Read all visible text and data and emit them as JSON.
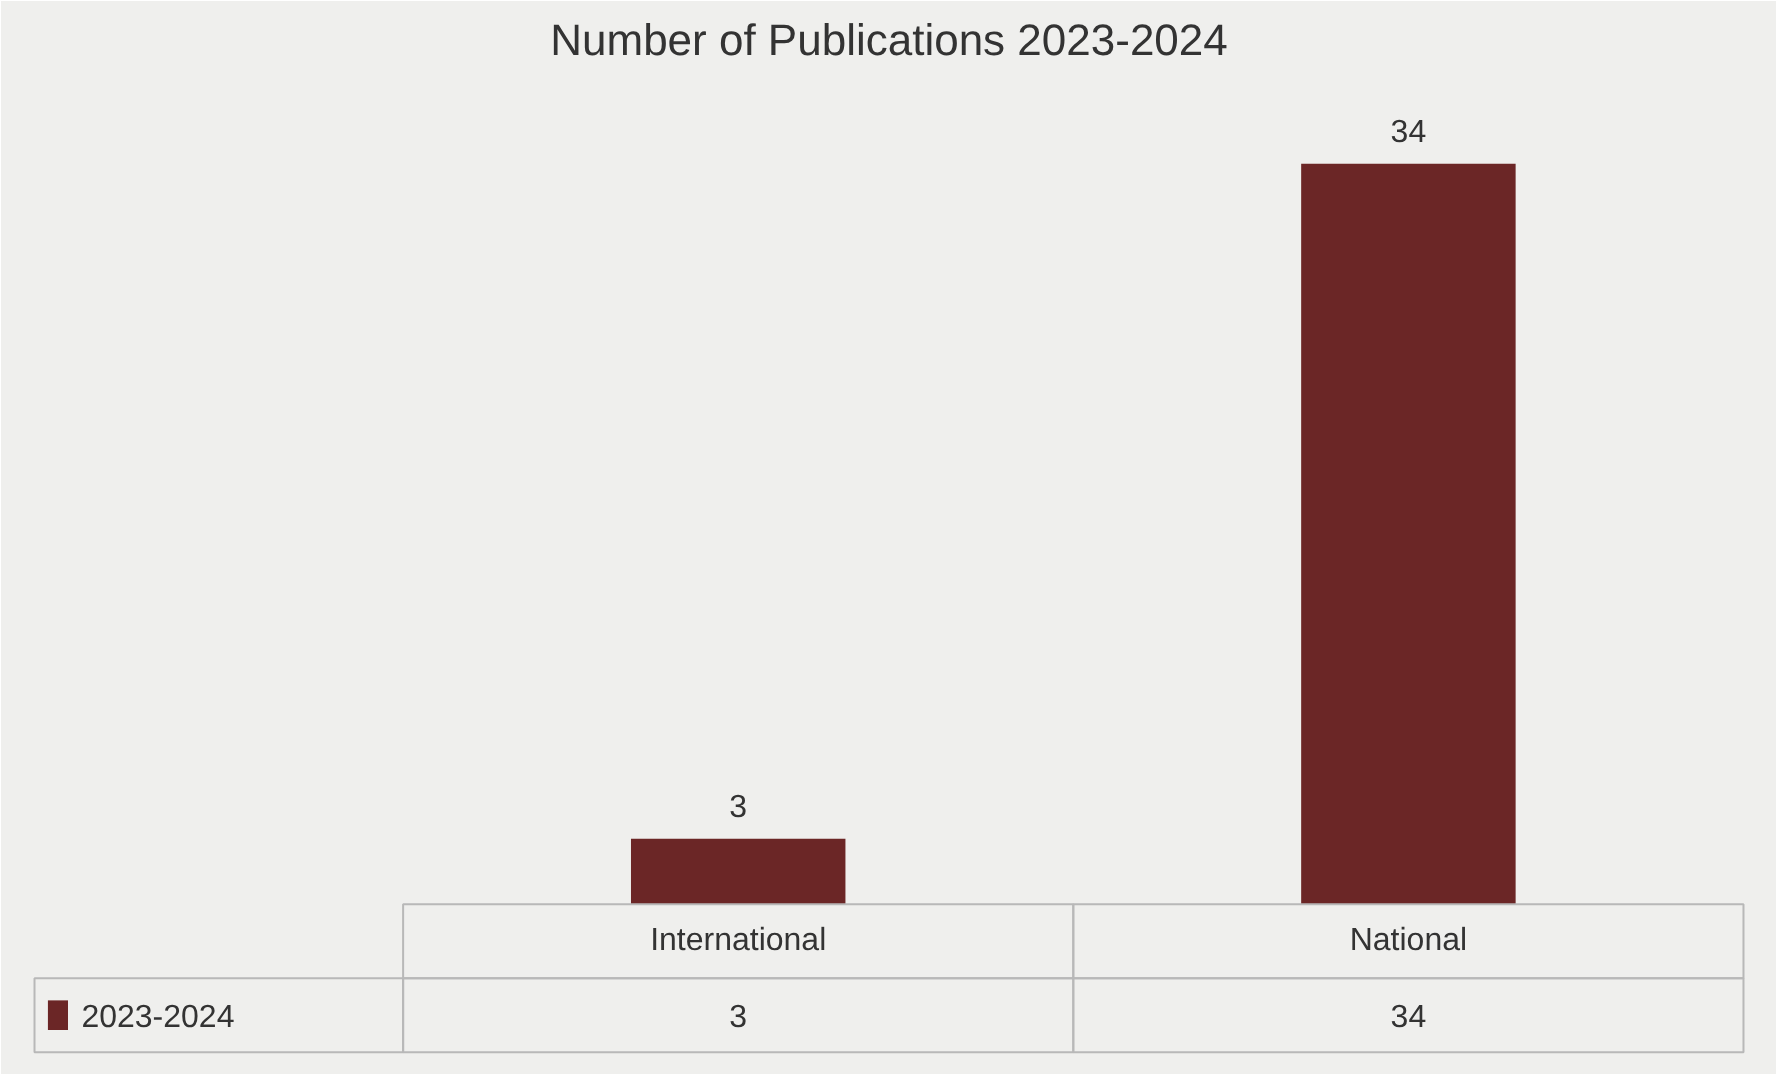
{
  "chart_data": {
    "type": "bar",
    "title": "Number of Publications 2023-2024",
    "categories": [
      "International",
      "National"
    ],
    "series": [
      {
        "name": "2023-2024",
        "color": "#6b2626",
        "values": [
          3,
          34
        ]
      }
    ],
    "data_labels": true,
    "annotations": [
      "3",
      "34"
    ]
  }
}
